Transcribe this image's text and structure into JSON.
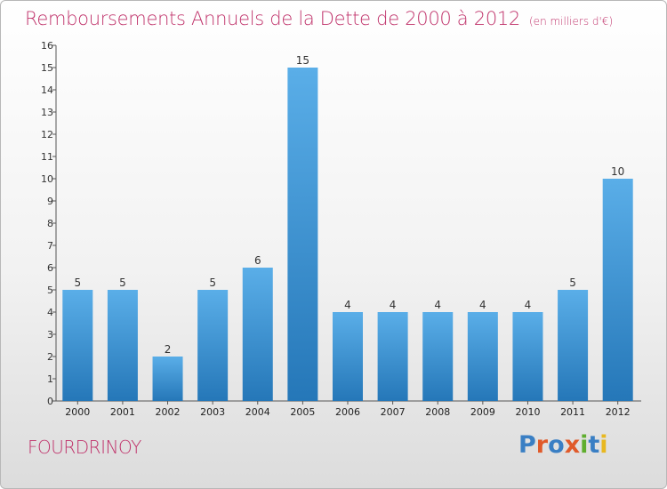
{
  "header": {
    "title": "Remboursements Annuels de la Dette de 2000 à 2012",
    "subtitle": "(en milliers d'€)"
  },
  "footer": {
    "place": "FOURDRINOY",
    "logo_text": "Proxiti"
  },
  "colors": {
    "title": "#c0336b",
    "bar_top": "#5aaee8",
    "bar_bottom": "#2577b8",
    "logo": [
      "#3a7fc4",
      "#e05a2a",
      "#3a7fc4",
      "#e05a2a",
      "#5fae2e",
      "#3a7fc4",
      "#e8b820"
    ]
  },
  "chart_data": {
    "type": "bar",
    "categories": [
      "2000",
      "2001",
      "2002",
      "2003",
      "2004",
      "2005",
      "2006",
      "2007",
      "2008",
      "2009",
      "2010",
      "2011",
      "2012"
    ],
    "values": [
      5,
      5,
      2,
      5,
      6,
      15,
      4,
      4,
      4,
      4,
      4,
      5,
      10
    ],
    "ylim": [
      0,
      16
    ],
    "yticks": [
      "0",
      "1",
      "2",
      "3",
      "4",
      "5",
      "6",
      "7",
      "8",
      "9",
      "10",
      "11",
      "12",
      "13",
      "14",
      "15",
      "16"
    ],
    "grid": false,
    "legend": "none"
  }
}
